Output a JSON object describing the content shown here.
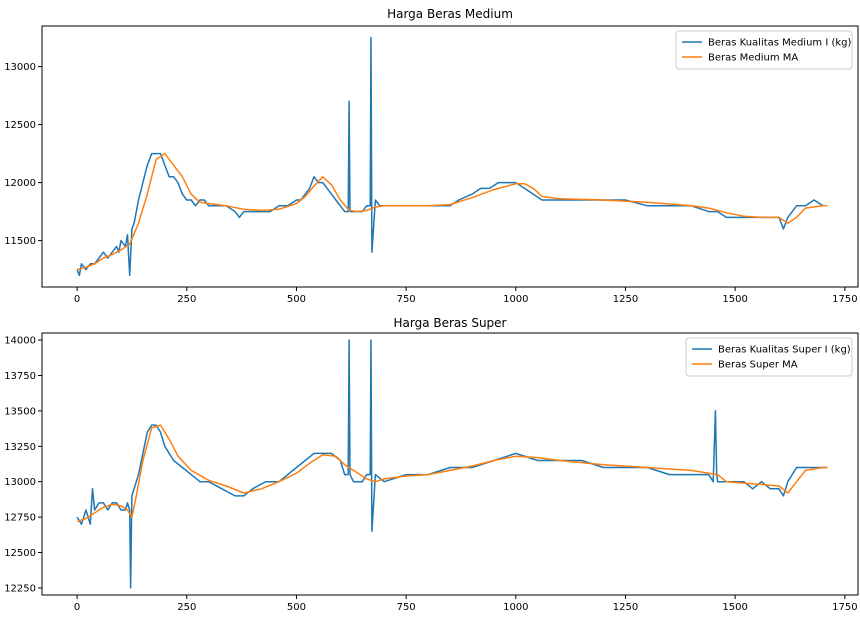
{
  "colors": {
    "raw": "#1f77b4",
    "ma": "#ff7f0e",
    "axes": "#000000",
    "legend_border": "#cccccc"
  },
  "chart_data": [
    {
      "type": "line",
      "title": "Harga Beras Medium",
      "xlabel": "",
      "ylabel": "",
      "xlim": [
        -80,
        1780
      ],
      "ylim": [
        11100,
        13350
      ],
      "xticks": [
        0,
        250,
        500,
        750,
        1000,
        1250,
        1500,
        1750
      ],
      "yticks": [
        11500,
        12000,
        12500,
        13000
      ],
      "grid": false,
      "legend_position": "top-right",
      "series": [
        {
          "name": "Beras Kualitas Medium I (kg)",
          "color": "#1f77b4",
          "x": [
            0,
            5,
            10,
            20,
            30,
            40,
            50,
            60,
            70,
            80,
            90,
            95,
            100,
            110,
            115,
            120,
            125,
            130,
            140,
            150,
            160,
            170,
            180,
            190,
            200,
            210,
            220,
            230,
            240,
            250,
            260,
            270,
            280,
            290,
            300,
            320,
            340,
            360,
            370,
            380,
            400,
            420,
            440,
            460,
            480,
            500,
            510,
            520,
            530,
            540,
            550,
            560,
            570,
            580,
            590,
            600,
            610,
            618,
            620,
            622,
            630,
            640,
            650,
            660,
            668,
            670,
            672,
            680,
            690,
            700,
            720,
            750,
            780,
            800,
            830,
            850,
            870,
            900,
            920,
            940,
            960,
            980,
            1000,
            1020,
            1040,
            1060,
            1080,
            1100,
            1150,
            1200,
            1250,
            1300,
            1350,
            1400,
            1440,
            1460,
            1480,
            1500,
            1520,
            1540,
            1560,
            1580,
            1600,
            1610,
            1620,
            1640,
            1660,
            1680,
            1700,
            1710
          ],
          "y": [
            11250,
            11200,
            11300,
            11250,
            11300,
            11300,
            11350,
            11400,
            11350,
            11400,
            11450,
            11400,
            11500,
            11450,
            11550,
            11200,
            11600,
            11650,
            11850,
            12000,
            12150,
            12250,
            12250,
            12250,
            12150,
            12050,
            12050,
            12000,
            11900,
            11850,
            11850,
            11800,
            11850,
            11850,
            11800,
            11800,
            11800,
            11750,
            11700,
            11750,
            11750,
            11750,
            11750,
            11800,
            11800,
            11850,
            11850,
            11900,
            11950,
            12050,
            12000,
            12000,
            11950,
            11900,
            11850,
            11800,
            11750,
            11750,
            12700,
            11750,
            11750,
            11750,
            11750,
            11800,
            11800,
            13250,
            11400,
            11850,
            11800,
            11800,
            11800,
            11800,
            11800,
            11800,
            11800,
            11800,
            11850,
            11900,
            11950,
            11950,
            12000,
            12000,
            12000,
            11950,
            11900,
            11850,
            11850,
            11850,
            11850,
            11850,
            11850,
            11800,
            11800,
            11800,
            11750,
            11750,
            11700,
            11700,
            11700,
            11700,
            11700,
            11700,
            11700,
            11600,
            11700,
            11800,
            11800,
            11850,
            11800,
            11800
          ]
        },
        {
          "name": "Beras Medium MA",
          "color": "#ff7f0e",
          "x": [
            0,
            20,
            40,
            60,
            80,
            100,
            120,
            140,
            160,
            180,
            200,
            220,
            240,
            260,
            280,
            300,
            340,
            380,
            420,
            460,
            500,
            520,
            540,
            560,
            580,
            600,
            620,
            640,
            660,
            680,
            700,
            750,
            800,
            850,
            900,
            950,
            1000,
            1020,
            1040,
            1060,
            1100,
            1200,
            1300,
            1400,
            1440,
            1480,
            1520,
            1560,
            1600,
            1620,
            1640,
            1660,
            1700,
            1710
          ],
          "y": [
            11250,
            11270,
            11300,
            11350,
            11380,
            11420,
            11470,
            11650,
            11900,
            12200,
            12250,
            12150,
            12050,
            11900,
            11830,
            11820,
            11800,
            11770,
            11760,
            11770,
            11820,
            11880,
            11970,
            12050,
            11980,
            11850,
            11760,
            11750,
            11760,
            11790,
            11800,
            11800,
            11800,
            11810,
            11870,
            11940,
            11990,
            11990,
            11950,
            11880,
            11860,
            11850,
            11830,
            11800,
            11780,
            11740,
            11710,
            11700,
            11700,
            11650,
            11700,
            11780,
            11800,
            11800
          ]
        }
      ]
    },
    {
      "type": "line",
      "title": "Harga Beras Super",
      "xlabel": "",
      "ylabel": "",
      "xlim": [
        -80,
        1780
      ],
      "ylim": [
        12200,
        14050
      ],
      "xticks": [
        0,
        250,
        500,
        750,
        1000,
        1250,
        1500,
        1750
      ],
      "yticks": [
        12250,
        12500,
        12750,
        13000,
        13250,
        13500,
        13750,
        14000
      ],
      "grid": false,
      "legend_position": "top-right",
      "series": [
        {
          "name": "Beras Kualitas Super I (kg)",
          "color": "#1f77b4",
          "x": [
            0,
            10,
            20,
            30,
            35,
            40,
            50,
            60,
            70,
            80,
            90,
            100,
            110,
            115,
            120,
            122,
            125,
            130,
            140,
            150,
            160,
            170,
            180,
            190,
            200,
            220,
            240,
            260,
            280,
            300,
            330,
            360,
            380,
            400,
            430,
            460,
            500,
            520,
            540,
            560,
            580,
            600,
            610,
            618,
            620,
            622,
            630,
            640,
            650,
            660,
            668,
            670,
            672,
            680,
            700,
            750,
            800,
            850,
            900,
            950,
            1000,
            1050,
            1100,
            1150,
            1200,
            1250,
            1300,
            1350,
            1400,
            1440,
            1450,
            1455,
            1458,
            1460,
            1480,
            1500,
            1520,
            1540,
            1560,
            1580,
            1600,
            1610,
            1620,
            1640,
            1660,
            1680,
            1700,
            1710
          ],
          "y": [
            12750,
            12700,
            12800,
            12700,
            12950,
            12800,
            12850,
            12850,
            12800,
            12850,
            12850,
            12800,
            12800,
            12850,
            12800,
            12250,
            12900,
            12950,
            13050,
            13200,
            13350,
            13400,
            13400,
            13350,
            13250,
            13150,
            13100,
            13050,
            13000,
            13000,
            12950,
            12900,
            12900,
            12950,
            13000,
            13000,
            13100,
            13150,
            13200,
            13200,
            13200,
            13150,
            13050,
            13050,
            14000,
            13050,
            13000,
            13000,
            13000,
            13050,
            13050,
            14000,
            12650,
            13050,
            13000,
            13050,
            13050,
            13100,
            13100,
            13150,
            13200,
            13150,
            13150,
            13150,
            13100,
            13100,
            13100,
            13050,
            13050,
            13050,
            13000,
            13500,
            13050,
            13000,
            13000,
            13000,
            13000,
            12950,
            13000,
            12950,
            12950,
            12900,
            13000,
            13100,
            13100,
            13100,
            13100,
            13100
          ]
        },
        {
          "name": "Beras Super MA",
          "color": "#ff7f0e",
          "x": [
            0,
            20,
            40,
            60,
            80,
            100,
            115,
            125,
            135,
            150,
            170,
            190,
            210,
            230,
            260,
            300,
            340,
            380,
            420,
            460,
            500,
            530,
            560,
            590,
            610,
            640,
            660,
            680,
            700,
            750,
            800,
            850,
            900,
            950,
            1000,
            1050,
            1100,
            1200,
            1300,
            1400,
            1440,
            1460,
            1480,
            1520,
            1560,
            1600,
            1620,
            1640,
            1660,
            1700,
            1710
          ],
          "y": [
            12720,
            12740,
            12780,
            12820,
            12840,
            12830,
            12800,
            12750,
            12900,
            13150,
            13380,
            13400,
            13300,
            13180,
            13080,
            13010,
            12970,
            12920,
            12950,
            13000,
            13060,
            13130,
            13190,
            13180,
            13120,
            13060,
            13020,
            13000,
            13020,
            13040,
            13050,
            13080,
            13110,
            13150,
            13180,
            13170,
            13150,
            13120,
            13100,
            13080,
            13060,
            13050,
            13000,
            12990,
            12980,
            12970,
            12920,
            13000,
            13080,
            13100,
            13100
          ]
        }
      ]
    }
  ]
}
